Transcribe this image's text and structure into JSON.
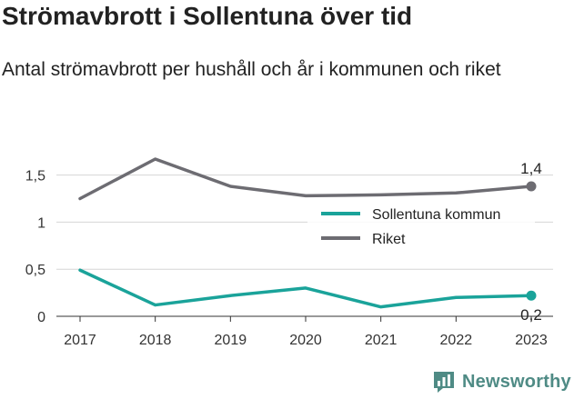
{
  "header": {
    "title": "Strömavbrott i Sollentuna över tid",
    "subtitle": "Antal strömavbrott per hushåll och år i kommunen och riket"
  },
  "brand": {
    "name": "Newsworthy",
    "color": "#4f8b85"
  },
  "chart_data": {
    "type": "line",
    "title": "Strömavbrott i Sollentuna över tid",
    "subtitle": "Antal strömavbrott per hushåll och år i kommunen och riket",
    "x": [
      "2017",
      "2018",
      "2019",
      "2020",
      "2021",
      "2022",
      "2023"
    ],
    "y_ticks": [
      "0",
      "0,5",
      "1",
      "1,5"
    ],
    "ylim": [
      0,
      1.7
    ],
    "grid": "horizontal",
    "legend_position": "right",
    "series": [
      {
        "name": "Sollentuna kommun",
        "color": "#1aa39a",
        "values": [
          0.49,
          0.12,
          0.22,
          0.3,
          0.1,
          0.2,
          0.22
        ],
        "end_label": "0,2"
      },
      {
        "name": "Riket",
        "color": "#6d6c72",
        "values": [
          1.25,
          1.67,
          1.38,
          1.28,
          1.29,
          1.31,
          1.38
        ],
        "end_label": "1,4"
      }
    ]
  }
}
